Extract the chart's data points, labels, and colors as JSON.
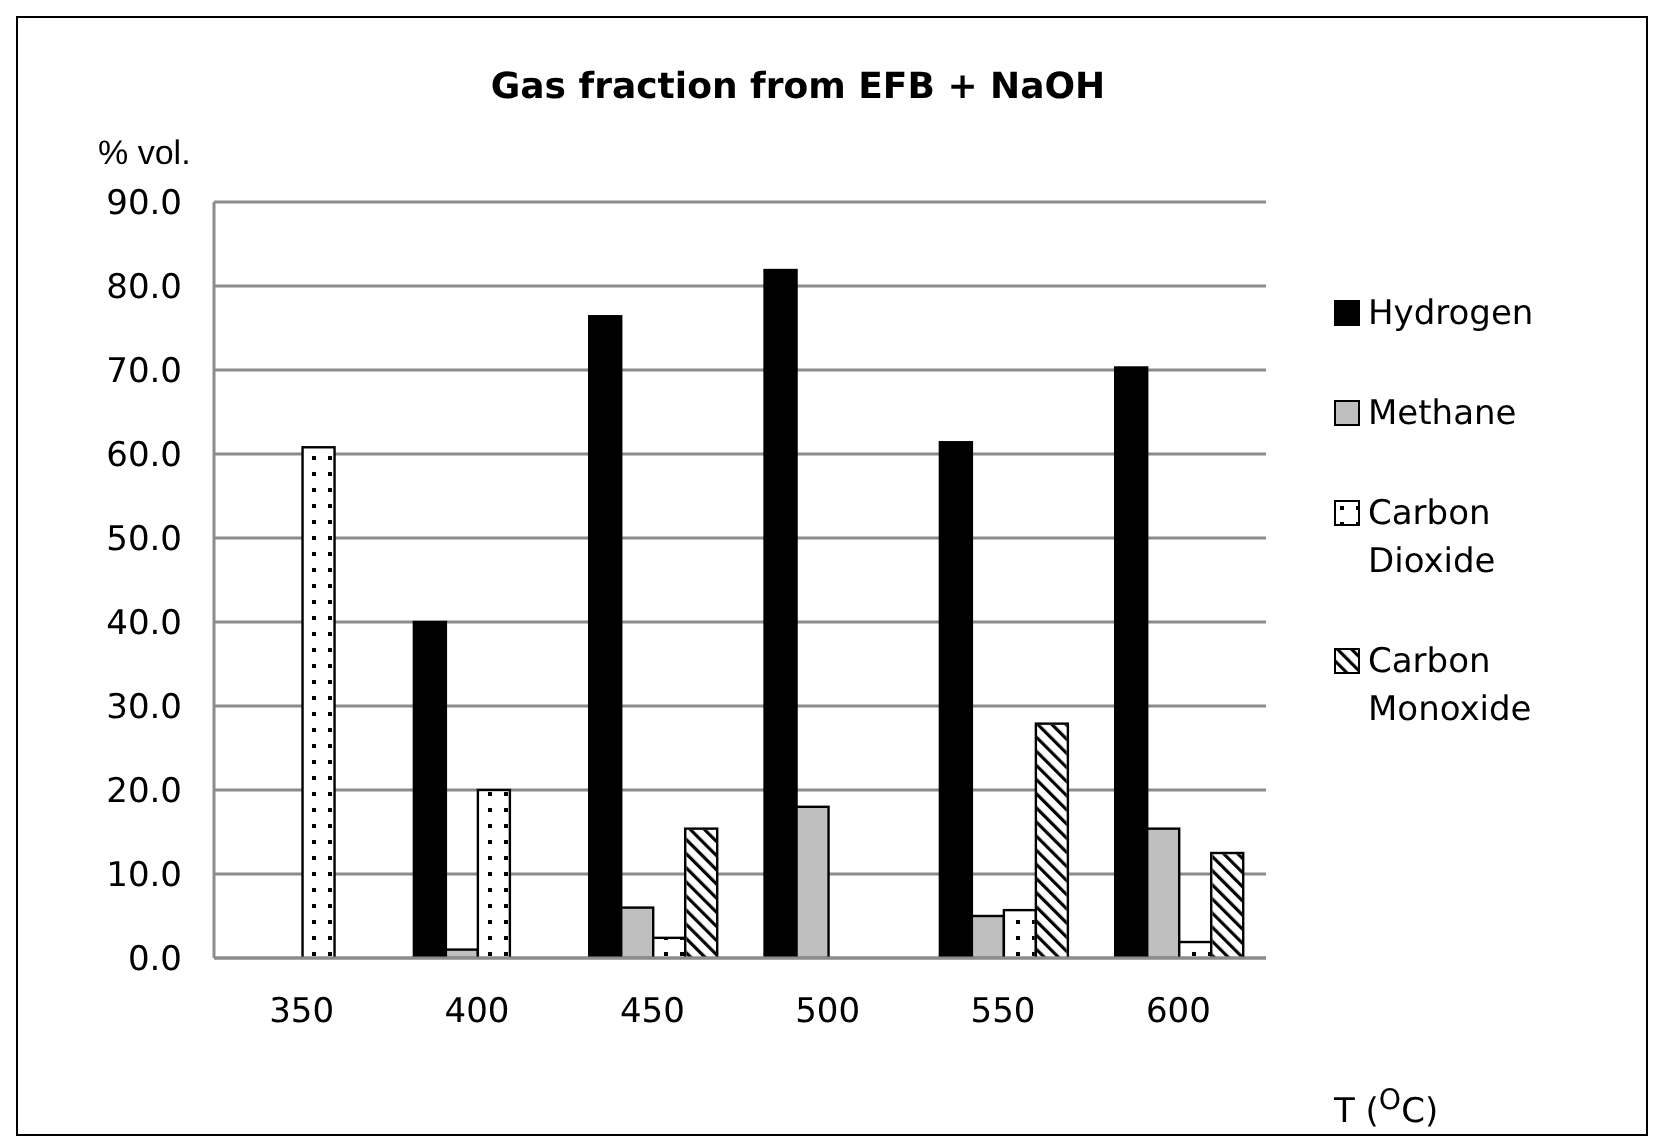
{
  "chart_data": {
    "type": "bar",
    "title": "Gas fraction from EFB + NaOH",
    "ylabel": "% vol.",
    "xlabel": "T ($^{O}$C)",
    "categories": [
      "350",
      "400",
      "450",
      "500",
      "550",
      "600"
    ],
    "series": [
      {
        "name": "Hydrogen",
        "color": "#000000",
        "values": [
          0,
          40.0,
          76.4,
          81.9,
          61.4,
          70.3
        ]
      },
      {
        "name": "Methane",
        "color": "#bfbfbf",
        "values": [
          0,
          1.0,
          6.0,
          18.0,
          5.0,
          15.4
        ]
      },
      {
        "name": "Carbon Dioxide",
        "color": "#ffffff",
        "values": [
          60.8,
          20.0,
          2.4,
          0,
          5.7,
          1.9
        ]
      },
      {
        "name": "Carbon Monoxide",
        "color": "#ffffff",
        "values": [
          0,
          0,
          15.4,
          0,
          27.9,
          12.5
        ]
      }
    ],
    "ylim": [
      0,
      90
    ],
    "yticks": [
      {
        "value": 0,
        "label": "0.0"
      },
      {
        "value": 10,
        "label": "10.0"
      },
      {
        "value": 20,
        "label": "20.0"
      },
      {
        "value": 30,
        "label": "30.0"
      },
      {
        "value": 40,
        "label": "40.0"
      },
      {
        "value": 50,
        "label": "50.0"
      },
      {
        "value": 60,
        "label": "60.0"
      },
      {
        "value": 70,
        "label": "70.0"
      },
      {
        "value": 80,
        "label": "80.0"
      },
      {
        "value": 90,
        "label": "90.0"
      }
    ],
    "grid": "y",
    "legend": "right"
  }
}
